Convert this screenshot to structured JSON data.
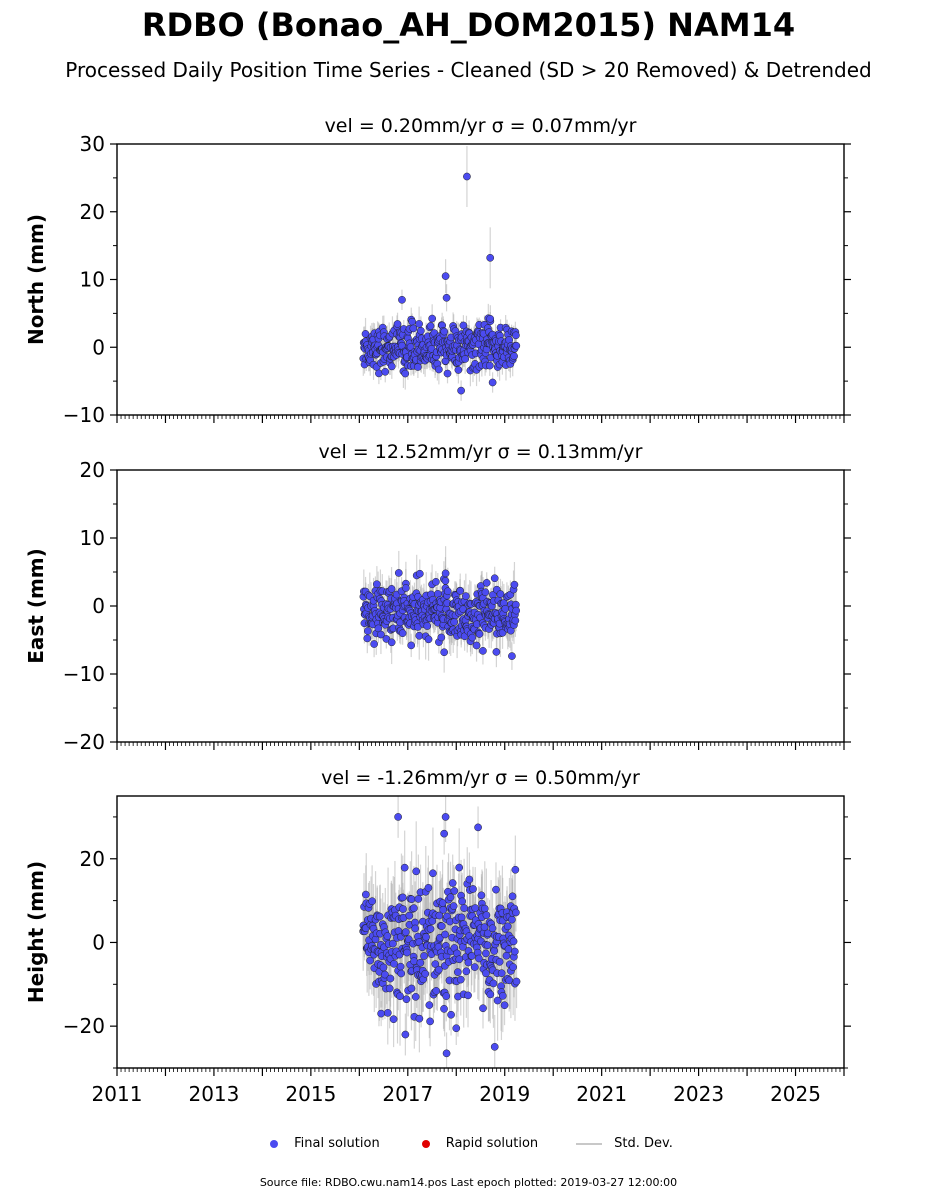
{
  "title": "RDBO (Bonao_AH_DOM2015) NAM14",
  "subtitle": "Processed Daily Position Time Series - Cleaned (SD > 20 Removed) & Detrended",
  "legend": {
    "final": "Final solution",
    "rapid": "Rapid solution",
    "std": "Std. Dev."
  },
  "footer": "Source file: RDBO.cwu.nam14.pos  Last epoch plotted: 2019-03-27 12:00:00",
  "colors": {
    "final": "#4b4bf0",
    "rapid": "#e00000",
    "std": "#c8c8c8",
    "edge": "#222222"
  },
  "chart_data": [
    {
      "type": "scatter",
      "panel": "north",
      "title": "vel = 0.20mm/yr   σ = 0.07mm/yr",
      "ylabel": "North (mm)",
      "xlim": [
        2011,
        2026
      ],
      "ylim": [
        -10,
        30
      ],
      "yticks": [
        -10,
        0,
        10,
        20,
        30
      ],
      "yticklabels": [
        "−10",
        "0",
        "10",
        "20",
        "30"
      ],
      "data_range": [
        2016.08,
        2019.24
      ],
      "spread": 1.6,
      "outliers": [
        {
          "x": 2018.22,
          "y": 25.2,
          "err": 4.5
        },
        {
          "x": 2018.7,
          "y": 13.2,
          "err": 4.5
        },
        {
          "x": 2017.78,
          "y": 10.5,
          "err": 2.5
        },
        {
          "x": 2017.8,
          "y": 7.3,
          "err": 2
        },
        {
          "x": 2016.88,
          "y": 7.0,
          "err": 1.5
        },
        {
          "x": 2018.1,
          "y": -6.4,
          "err": 1.5
        },
        {
          "x": 2018.75,
          "y": -5.2,
          "err": 1.5
        },
        {
          "x": 2018.7,
          "y": 4.2,
          "err": 1
        }
      ],
      "series": [
        {
          "name": "Final solution"
        }
      ]
    },
    {
      "type": "scatter",
      "panel": "east",
      "title": "vel = 12.52mm/yr   σ = 0.13mm/yr",
      "ylabel": "East (mm)",
      "xlim": [
        2011,
        2026
      ],
      "ylim": [
        -20,
        20
      ],
      "yticks": [
        -20,
        -10,
        0,
        10,
        20
      ],
      "yticklabels": [
        "−20",
        "−10",
        "0",
        "10",
        "20"
      ],
      "data_range": [
        2016.08,
        2019.24
      ],
      "spread": 2.2,
      "outliers": [
        {
          "x": 2017.78,
          "y": 4.8,
          "err": 4
        },
        {
          "x": 2017.75,
          "y": -6.8,
          "err": 3
        },
        {
          "x": 2018.55,
          "y": -6.6,
          "err": 2
        }
      ],
      "series": [
        {
          "name": "Final solution"
        }
      ]
    },
    {
      "type": "scatter",
      "panel": "height",
      "title": "vel = -1.26mm/yr   σ = 0.50mm/yr",
      "ylabel": "Height (mm)",
      "xlim": [
        2011,
        2026
      ],
      "ylim": [
        -30,
        35
      ],
      "yticks": [
        -20,
        0,
        20
      ],
      "yticklabels": [
        "−20",
        "0",
        "20"
      ],
      "xticks": [
        2011,
        2013,
        2015,
        2017,
        2019,
        2021,
        2023,
        2025
      ],
      "xticklabels": [
        "2011",
        "2013",
        "2015",
        "2017",
        "2019",
        "2021",
        "2023",
        "2025"
      ],
      "data_range": [
        2016.08,
        2019.24
      ],
      "spread": 7.5,
      "outliers": [
        {
          "x": 2017.78,
          "y": 30.0,
          "err": 6
        },
        {
          "x": 2016.8,
          "y": 30.0,
          "err": 5
        },
        {
          "x": 2017.75,
          "y": 26.0,
          "err": 5
        },
        {
          "x": 2018.45,
          "y": 27.5,
          "err": 5
        },
        {
          "x": 2017.8,
          "y": -26.5,
          "err": 5
        },
        {
          "x": 2016.95,
          "y": -22.0,
          "err": 5
        },
        {
          "x": 2018.0,
          "y": -20.5,
          "err": 4
        },
        {
          "x": 2016.45,
          "y": -17.0,
          "err": 3
        }
      ],
      "series": [
        {
          "name": "Final solution"
        }
      ]
    }
  ]
}
